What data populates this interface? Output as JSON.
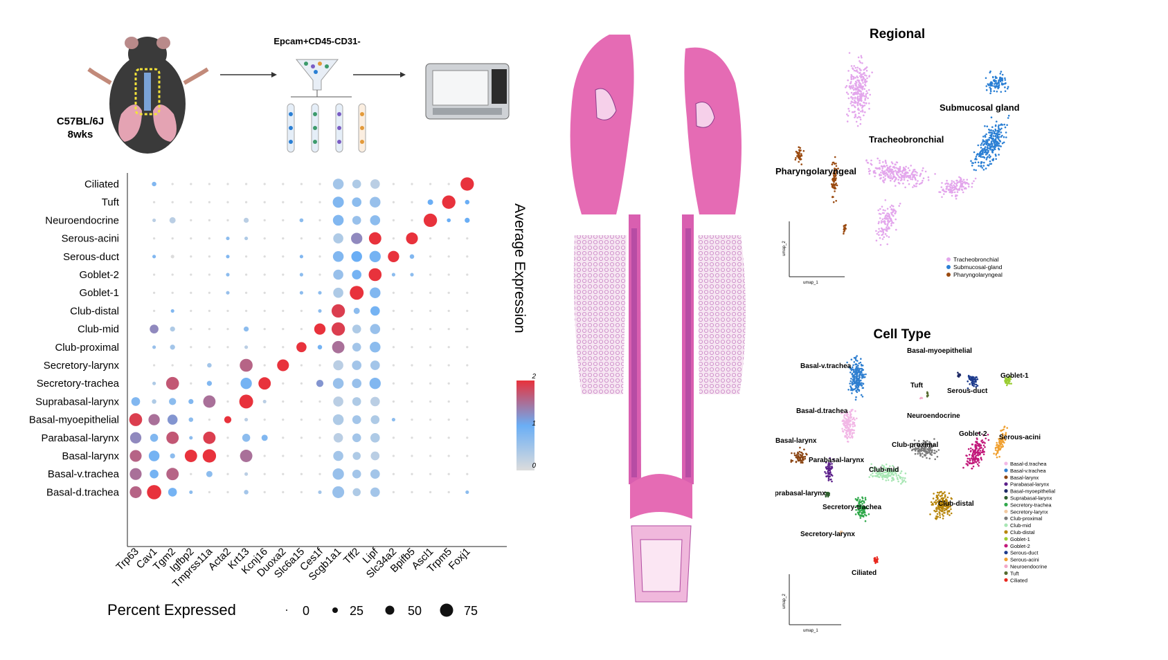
{
  "workflow": {
    "mouse_strain": "C57BL/6J",
    "mouse_age": "8wks",
    "sort_label": "Epcam+CD45-CD31-"
  },
  "dotplot": {
    "legend_title_color": "Average Expression",
    "legend_title_size": "Percent Expressed",
    "color_ticks": [
      "2",
      "1",
      "0"
    ],
    "size_ticks": [
      "0",
      "25",
      "50",
      "75"
    ]
  },
  "chart_data": [
    {
      "type": "scatter",
      "title": "",
      "xlabel": "",
      "ylabel": "",
      "genes": [
        "Trp63",
        "Cav1",
        "Tgm2",
        "Igfbp2",
        "Tmprss11a",
        "Acta2",
        "Krt13",
        "Kcnj16",
        "Duoxa2",
        "Slc6a15",
        "Ces1f",
        "Scgb1a1",
        "Tff2",
        "Lipf",
        "Slc34a2",
        "Bpifb5",
        "Ascl1",
        "Trpm5",
        "Foxj1"
      ],
      "cell_types": [
        "Ciliated",
        "Tuft",
        "Neuroendocrine",
        "Serous-acini",
        "Serous-duct",
        "Goblet-2",
        "Goblet-1",
        "Club-distal",
        "Club-mid",
        "Club-proximal",
        "Secretory-larynx",
        "Secretory-trachea",
        "Suprabasal-larynx",
        "Basal-myoepithelial",
        "Parabasal-larynx",
        "Basal-larynx",
        "Basal-v.trachea",
        "Basal-d.trachea"
      ],
      "color_range": [
        0,
        2
      ],
      "size_range": [
        0,
        75
      ],
      "values_expression": [
        [
          0,
          0.8,
          0,
          0,
          0,
          0,
          0,
          0,
          0,
          0,
          0,
          0.5,
          0.4,
          0.3,
          0,
          0,
          0,
          0,
          2
        ],
        [
          0,
          0,
          0,
          0,
          0,
          0,
          0,
          0,
          0,
          0,
          0,
          0.8,
          0.7,
          0.6,
          0,
          0,
          1,
          2,
          1
        ],
        [
          0,
          0.3,
          0.3,
          0,
          0,
          0,
          0.3,
          0,
          0,
          0.7,
          0,
          0.8,
          0.6,
          0.7,
          0,
          0,
          2,
          1,
          1
        ],
        [
          0,
          0,
          0,
          0,
          0,
          0.7,
          0.4,
          0,
          0,
          0,
          0,
          0.4,
          1.3,
          2,
          0,
          2,
          0,
          0,
          0
        ],
        [
          0,
          0.8,
          0,
          0,
          0,
          0.8,
          0,
          0,
          0,
          0.8,
          0,
          0.8,
          1,
          0.9,
          2,
          0.8,
          0,
          0,
          0
        ],
        [
          0,
          0,
          0,
          0,
          0,
          0.7,
          0,
          0,
          0,
          0.7,
          0,
          0.6,
          0.9,
          2,
          0.7,
          0.7,
          0,
          0,
          0
        ],
        [
          0,
          0,
          0,
          0,
          0,
          0.6,
          0,
          0,
          0,
          0.7,
          0.7,
          0.4,
          2,
          0.8,
          0,
          0,
          0,
          0,
          0
        ],
        [
          0,
          0,
          0.8,
          0,
          0,
          0,
          0,
          0,
          0,
          0,
          0.7,
          1.9,
          0.7,
          0.9,
          0,
          0,
          0,
          0,
          0
        ],
        [
          0,
          1.3,
          0.4,
          0,
          0,
          0,
          0.7,
          0,
          0,
          0,
          2,
          1.9,
          0.4,
          0.6,
          0,
          0,
          0,
          0,
          0
        ],
        [
          0,
          0.6,
          0.5,
          0,
          0,
          0,
          0.3,
          0,
          0,
          2,
          0.9,
          1.5,
          0.5,
          0.7,
          0,
          0,
          0,
          0,
          0
        ],
        [
          0,
          0,
          0,
          0,
          0.5,
          0,
          1.6,
          0,
          2,
          0,
          0,
          0.3,
          0.5,
          0.5,
          0,
          0,
          0,
          0,
          0
        ],
        [
          0,
          0.4,
          1.7,
          0,
          0.8,
          0,
          0.9,
          2,
          0,
          0,
          1.2,
          0.6,
          0.6,
          0.8,
          0,
          0,
          0,
          0,
          0
        ],
        [
          0.8,
          0.4,
          0.7,
          0.8,
          1.5,
          0,
          2,
          0.3,
          0,
          0,
          0,
          0.3,
          0.4,
          0.3,
          0,
          0,
          0,
          0,
          0
        ],
        [
          1.9,
          1.5,
          1.2,
          0.7,
          0,
          2,
          0.3,
          0,
          0,
          0,
          0,
          0.4,
          0.5,
          0.4,
          0.7,
          0,
          0,
          0,
          0
        ],
        [
          1.3,
          0.8,
          1.7,
          0.7,
          1.9,
          0,
          0.7,
          0.8,
          0,
          0,
          0,
          0.3,
          0.5,
          0.4,
          0,
          0,
          0,
          0,
          0
        ],
        [
          1.6,
          0.9,
          0.7,
          2,
          2,
          0,
          1.5,
          0,
          0,
          0,
          0,
          0.5,
          0.4,
          0.3,
          0,
          0,
          0,
          0,
          0
        ],
        [
          1.5,
          0.9,
          1.6,
          0,
          0.7,
          0,
          0.3,
          0,
          0,
          0,
          0,
          0.6,
          0.5,
          0.5,
          0,
          0,
          0,
          0,
          0
        ],
        [
          1.6,
          2,
          0.9,
          0.7,
          0,
          0,
          0.5,
          0,
          0,
          0,
          0.5,
          0.6,
          0.4,
          0.5,
          0,
          0,
          0,
          0,
          0.7
        ]
      ],
      "values_percent": [
        [
          0,
          8,
          2,
          2,
          2,
          2,
          2,
          2,
          2,
          2,
          2,
          45,
          30,
          35,
          2,
          2,
          2,
          2,
          70
        ],
        [
          0,
          2,
          2,
          2,
          2,
          2,
          2,
          2,
          2,
          2,
          2,
          48,
          35,
          45,
          2,
          2,
          12,
          70,
          8
        ],
        [
          0,
          5,
          15,
          2,
          2,
          2,
          10,
          2,
          2,
          6,
          2,
          45,
          30,
          40,
          2,
          2,
          70,
          6,
          10
        ],
        [
          0,
          2,
          2,
          2,
          2,
          5,
          5,
          2,
          2,
          2,
          2,
          40,
          50,
          60,
          2,
          55,
          2,
          2,
          2
        ],
        [
          0,
          5,
          5,
          2,
          2,
          5,
          2,
          2,
          2,
          5,
          2,
          45,
          45,
          50,
          50,
          8,
          2,
          2,
          2
        ],
        [
          0,
          2,
          2,
          2,
          2,
          5,
          2,
          2,
          2,
          5,
          2,
          40,
          35,
          65,
          5,
          5,
          2,
          2,
          2
        ],
        [
          0,
          2,
          2,
          2,
          2,
          5,
          2,
          2,
          2,
          5,
          5,
          40,
          75,
          45,
          2,
          2,
          2,
          2,
          2
        ],
        [
          0,
          2,
          5,
          2,
          2,
          2,
          2,
          2,
          2,
          2,
          5,
          70,
          15,
          35,
          2,
          2,
          2,
          2,
          2
        ],
        [
          0,
          30,
          10,
          2,
          2,
          2,
          10,
          2,
          2,
          2,
          50,
          70,
          30,
          40,
          2,
          2,
          2,
          2,
          2
        ],
        [
          0,
          5,
          10,
          2,
          2,
          2,
          5,
          2,
          2,
          40,
          8,
          60,
          30,
          45,
          2,
          2,
          2,
          2,
          2
        ],
        [
          0,
          2,
          2,
          2,
          8,
          2,
          65,
          2,
          55,
          2,
          2,
          40,
          35,
          35,
          2,
          2,
          2,
          2,
          2
        ],
        [
          0,
          5,
          65,
          2,
          10,
          2,
          50,
          60,
          2,
          2,
          20,
          45,
          35,
          50,
          2,
          2,
          2,
          2,
          2
        ],
        [
          30,
          8,
          20,
          10,
          60,
          2,
          75,
          5,
          2,
          2,
          2,
          40,
          30,
          35,
          2,
          2,
          2,
          2,
          2
        ],
        [
          65,
          50,
          40,
          8,
          2,
          20,
          5,
          2,
          2,
          2,
          2,
          45,
          30,
          30,
          5,
          2,
          2,
          2,
          2
        ],
        [
          50,
          25,
          60,
          5,
          60,
          2,
          25,
          15,
          2,
          2,
          2,
          35,
          30,
          35,
          2,
          2,
          2,
          2,
          2
        ],
        [
          55,
          45,
          10,
          60,
          70,
          2,
          60,
          2,
          2,
          2,
          2,
          40,
          25,
          30,
          2,
          2,
          2,
          2,
          2
        ],
        [
          55,
          30,
          60,
          2,
          15,
          2,
          5,
          2,
          2,
          2,
          2,
          50,
          30,
          35,
          2,
          2,
          2,
          2,
          2
        ],
        [
          55,
          80,
          30,
          5,
          2,
          2,
          8,
          2,
          2,
          2,
          5,
          55,
          25,
          35,
          2,
          2,
          2,
          2,
          5
        ]
      ]
    },
    {
      "type": "scatter",
      "title": "Regional",
      "xlabel": "umap_1",
      "ylabel": "umap_2",
      "series": [
        {
          "name": "Tracheobronchial",
          "color": "#e3a6ec"
        },
        {
          "name": "Submucosal-gland",
          "color": "#2a7fd4"
        },
        {
          "name": "Pharyngolaryngeal",
          "color": "#9a4a10"
        }
      ],
      "cluster_labels": [
        "Submucosal gland",
        "Tracheobronchial",
        "Pharyngolaryngeal"
      ]
    },
    {
      "type": "scatter",
      "title": "Cell Type",
      "xlabel": "umap_1",
      "ylabel": "umap_2",
      "series": [
        {
          "name": "Basal-d.trachea",
          "color": "#f2b8e6"
        },
        {
          "name": "Basal-v.trachea",
          "color": "#2f7fd0"
        },
        {
          "name": "Basal-larynx",
          "color": "#8b4513"
        },
        {
          "name": "Parabasal-larynx",
          "color": "#5b1f8a"
        },
        {
          "name": "Basal-myoepithelial",
          "color": "#1f2a66"
        },
        {
          "name": "Suprabasal-larynx",
          "color": "#2e5e2e"
        },
        {
          "name": "Secretory-trachea",
          "color": "#2fa84a"
        },
        {
          "name": "Secretory-larynx",
          "color": "#f2c9a0"
        },
        {
          "name": "Club-proximal",
          "color": "#7a7a7a"
        },
        {
          "name": "Club-mid",
          "color": "#a8e6b4"
        },
        {
          "name": "Club-distal",
          "color": "#b8860b"
        },
        {
          "name": "Goblet-1",
          "color": "#9acd32"
        },
        {
          "name": "Goblet-2",
          "color": "#c2187a"
        },
        {
          "name": "Serous-duct",
          "color": "#1c3a8c"
        },
        {
          "name": "Serous-acini",
          "color": "#f0a030"
        },
        {
          "name": "Neuroendocrine",
          "color": "#f2a8c8"
        },
        {
          "name": "Tuft",
          "color": "#556b2f"
        },
        {
          "name": "Ciliated",
          "color": "#e8281e"
        }
      ],
      "cluster_labels": [
        "Basal-v.trachea",
        "Basal-myoepithelial",
        "Goblet-1",
        "Tuft",
        "Serous-duct",
        "Neuroendocrine",
        "Basal-d.trachea",
        "Basal-larynx",
        "Club-proximal",
        "Goblet-2",
        "Serous-acini",
        "Parabasal-larynx",
        "Club-mid",
        "Suprabasal-larynx",
        "Club-distal",
        "Secretory-trachea",
        "Secretory-larynx",
        "Ciliated"
      ]
    }
  ]
}
